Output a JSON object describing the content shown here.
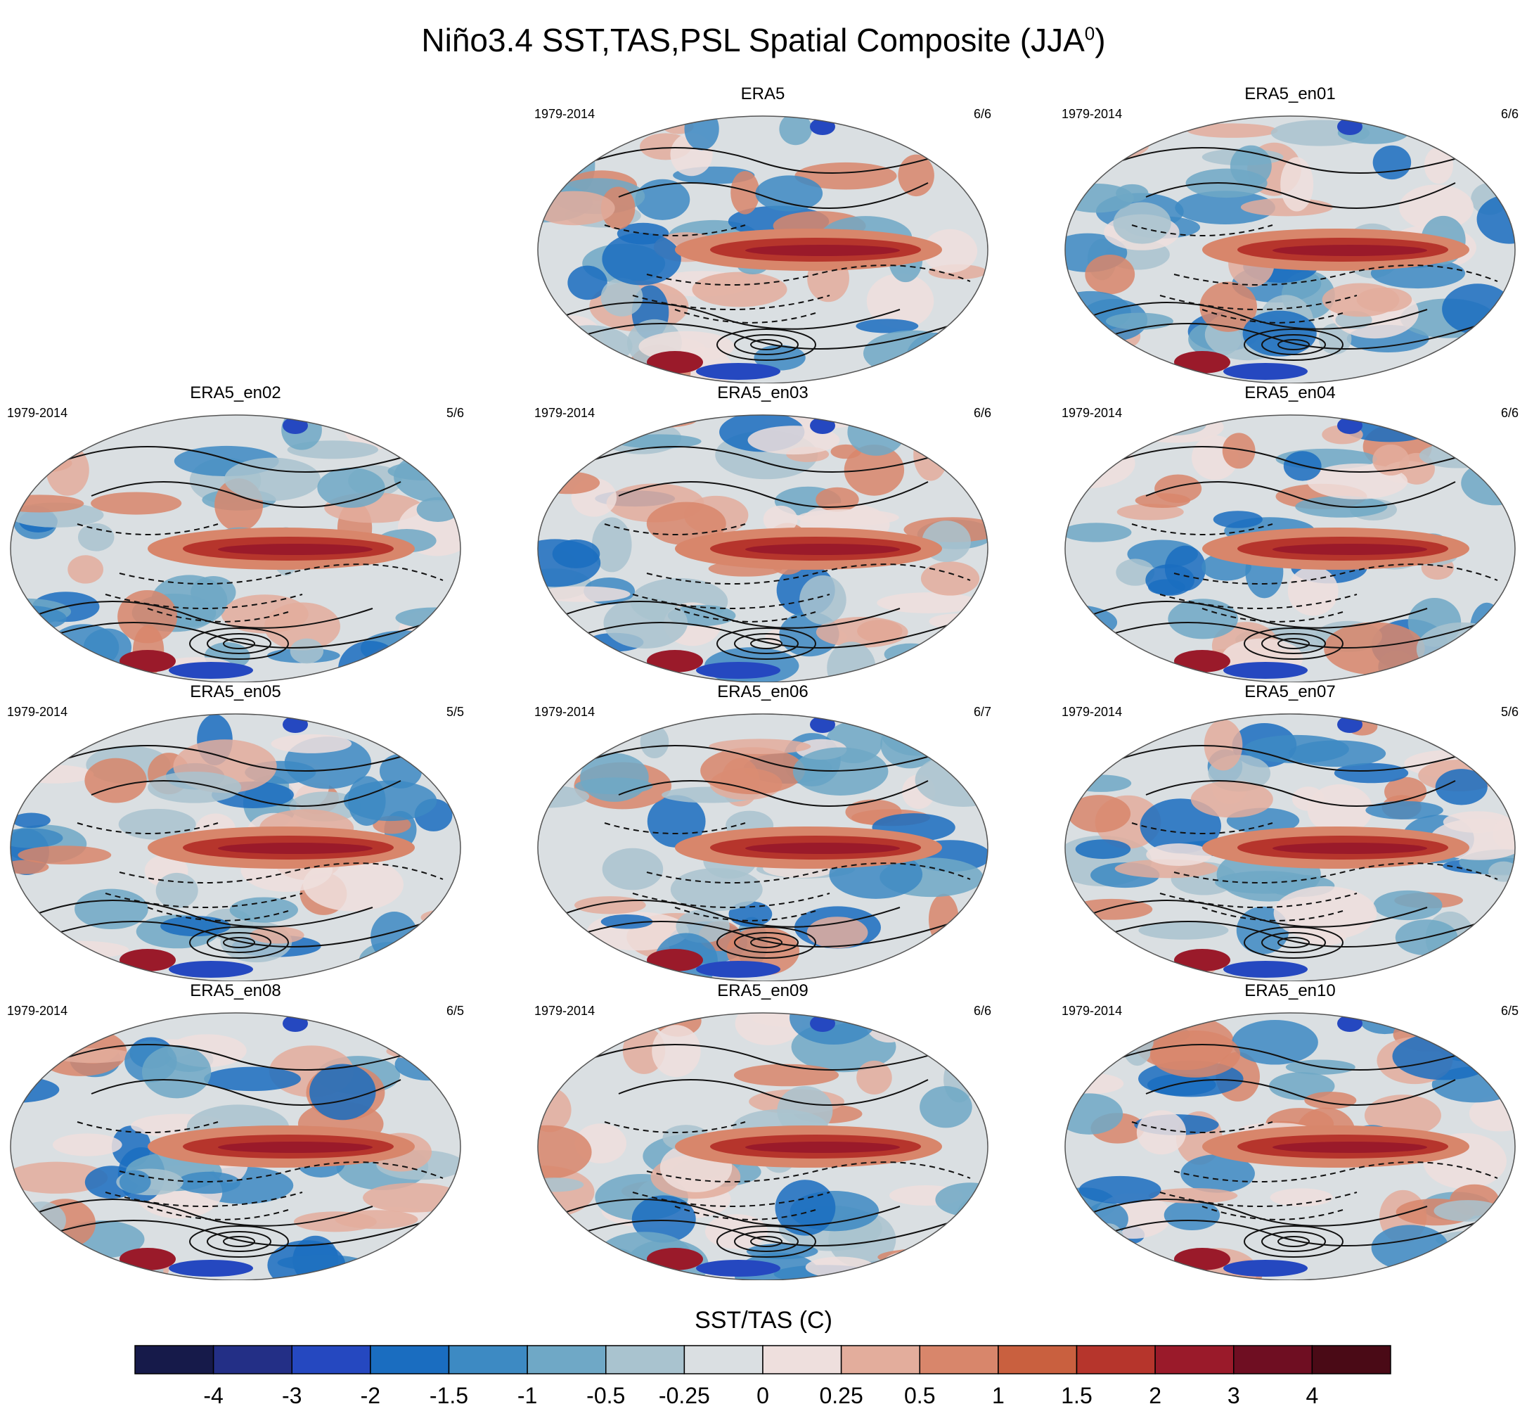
{
  "title": "Niño3.4 SST,TAS,PSL Spatial Composite (JJA",
  "title_sup": "0",
  "title_close": ")",
  "colorbar": {
    "title": "SST/TAS (C)",
    "colors": [
      "#161a4a",
      "#232f86",
      "#2548c0",
      "#1a6dc0",
      "#3d8ac3",
      "#6fa8c6",
      "#a9c3cf",
      "#dadfe2",
      "#eedfdd",
      "#e3ad9c",
      "#d8866b",
      "#c9603f",
      "#b6352c",
      "#9a1a2a",
      "#6f0e22",
      "#4a0a16"
    ],
    "labels": [
      "-4",
      "-3",
      "-2",
      "-1.5",
      "-1",
      "-0.5",
      "-0.25",
      "0",
      "0.25",
      "0.5",
      "1",
      "1.5",
      "2",
      "3",
      "4"
    ]
  },
  "chart_data": {
    "type": "heatmap",
    "description_units": "SST/TAS anomaly (C) with PSL contours",
    "panels": [
      {
        "name": "ERA5",
        "years": "1979-2014",
        "count": "6/6"
      },
      {
        "name": "ERA5_en01",
        "years": "1979-2014",
        "count": "6/6"
      },
      {
        "name": "ERA5_en02",
        "years": "1979-2014",
        "count": "5/6"
      },
      {
        "name": "ERA5_en03",
        "years": "1979-2014",
        "count": "6/6"
      },
      {
        "name": "ERA5_en04",
        "years": "1979-2014",
        "count": "6/6"
      },
      {
        "name": "ERA5_en05",
        "years": "1979-2014",
        "count": "5/5"
      },
      {
        "name": "ERA5_en06",
        "years": "1979-2014",
        "count": "6/7"
      },
      {
        "name": "ERA5_en07",
        "years": "1979-2014",
        "count": "5/6"
      },
      {
        "name": "ERA5_en08",
        "years": "1979-2014",
        "count": "6/5"
      },
      {
        "name": "ERA5_en09",
        "years": "1979-2014",
        "count": "6/6"
      },
      {
        "name": "ERA5_en10",
        "years": "1979-2014",
        "count": "6/5"
      }
    ]
  }
}
